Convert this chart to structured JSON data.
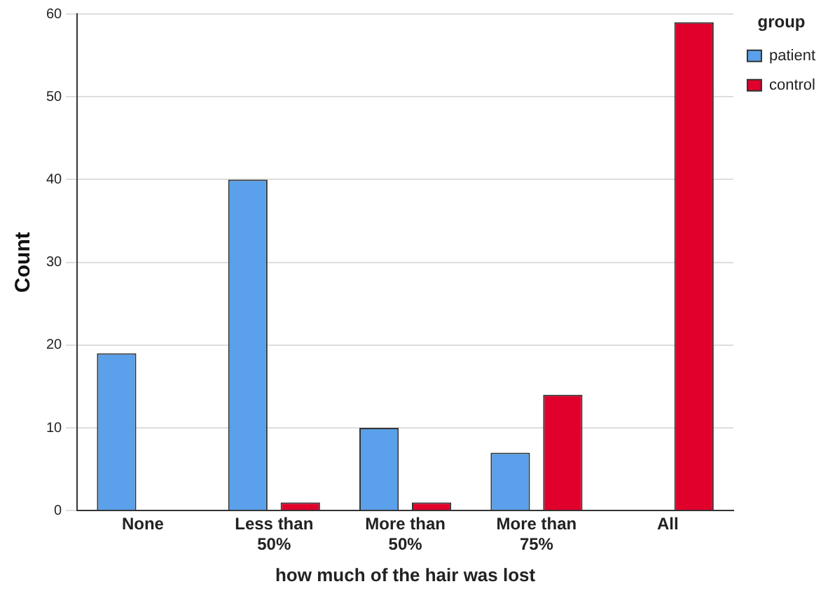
{
  "chart_data": {
    "type": "bar",
    "xlabel": "how much of the hair was lost",
    "ylabel": "Count",
    "legend_title": "group",
    "categories": [
      "None",
      "Less than 50%",
      "More than 50%",
      "More than 75%",
      "All"
    ],
    "series": [
      {
        "name": "patient",
        "color": "#5aa0ea",
        "values": [
          19,
          40,
          10,
          7,
          0
        ]
      },
      {
        "name": "control",
        "color": "#e0002b",
        "values": [
          0,
          1,
          1,
          14,
          59
        ]
      }
    ],
    "ylim": [
      0,
      60
    ],
    "yticks": [
      0,
      10,
      20,
      30,
      40,
      50,
      60
    ],
    "grid": "y",
    "legend": "top right"
  }
}
